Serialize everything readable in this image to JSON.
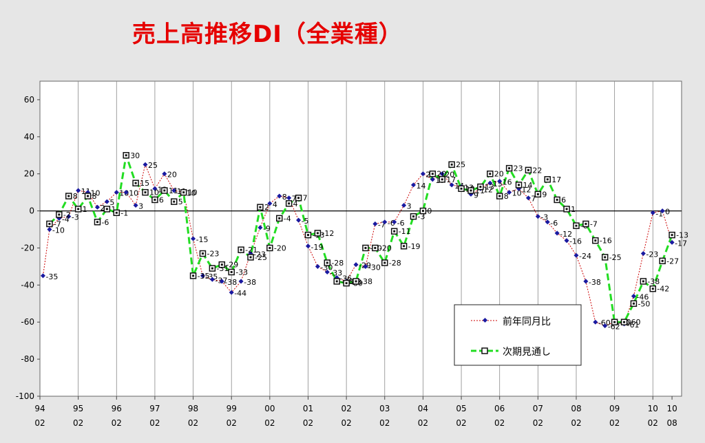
{
  "chart_data": {
    "type": "line",
    "title": "売上高推移DI（全業種）",
    "ylim": [
      -100,
      70
    ],
    "yticks": [
      60,
      40,
      20,
      0,
      -20,
      -40,
      -60,
      -80,
      -100
    ],
    "xticks": [
      {
        "top": "94",
        "bottom": "02"
      },
      {
        "top": "95",
        "bottom": "02"
      },
      {
        "top": "96",
        "bottom": "02"
      },
      {
        "top": "97",
        "bottom": "02"
      },
      {
        "top": "98",
        "bottom": "02"
      },
      {
        "top": "99",
        "bottom": "02"
      },
      {
        "top": "00",
        "bottom": "02"
      },
      {
        "top": "01",
        "bottom": "02"
      },
      {
        "top": "02",
        "bottom": "02"
      },
      {
        "top": "03",
        "bottom": "02"
      },
      {
        "top": "04",
        "bottom": "02"
      },
      {
        "top": "05",
        "bottom": "02"
      },
      {
        "top": "06",
        "bottom": "02"
      },
      {
        "top": "07",
        "bottom": "02"
      },
      {
        "top": "08",
        "bottom": "02"
      },
      {
        "top": "09",
        "bottom": "02"
      },
      {
        "top": "10",
        "bottom": "02"
      },
      {
        "top": "10",
        "bottom": "08"
      }
    ],
    "grid": true,
    "legend_position": "bottom-right",
    "series": [
      {
        "name": "前年同月比",
        "color": "#cc0000",
        "marker_color": "#1a1aa0",
        "x": [
          1994.08,
          1994.25,
          1994.5,
          1994.75,
          1995.0,
          1995.25,
          1995.5,
          1995.75,
          1996.0,
          1996.25,
          1996.5,
          1996.75,
          1997.0,
          1997.25,
          1997.5,
          1997.75,
          1998.0,
          1998.25,
          1998.5,
          1998.75,
          1999.0,
          1999.25,
          1999.5,
          1999.75,
          2000.0,
          2000.25,
          2000.5,
          2000.75,
          2001.0,
          2001.25,
          2001.5,
          2001.75,
          2002.0,
          2002.25,
          2002.5,
          2002.75,
          2003.0,
          2003.25,
          2003.5,
          2003.75,
          2004.0,
          2004.25,
          2004.5,
          2004.75,
          2005.0,
          2005.25,
          2005.5,
          2005.75,
          2006.0,
          2006.25,
          2006.5,
          2006.75,
          2007.0,
          2007.25,
          2007.5,
          2007.75,
          2008.0,
          2008.25,
          2008.5,
          2008.75,
          2009.0,
          2009.25,
          2009.5,
          2009.75,
          2010.0,
          2010.25,
          2010.5
        ],
        "values": [
          -35,
          -10,
          -4,
          -3,
          11,
          10,
          2,
          5,
          10,
          10,
          3,
          25,
          12,
          20,
          11,
          10,
          -15,
          -35,
          -37,
          -38,
          -44,
          -38,
          -23,
          -9,
          4,
          8,
          7,
          -5,
          -19,
          -30,
          -33,
          -36,
          -38,
          -29,
          -30,
          -7,
          -6,
          -6,
          3,
          14,
          20,
          17,
          20,
          14,
          13,
          9,
          12,
          15,
          16,
          10,
          12,
          7,
          -3,
          -6,
          -12,
          -16,
          -24,
          -38,
          -60,
          -62,
          -60,
          -61,
          -46,
          -23,
          -1,
          0,
          -17
        ],
        "labels": [
          "-35",
          "-10",
          "-4",
          "-3",
          "11",
          "10",
          "2",
          "5",
          "10",
          "10",
          "3",
          "25",
          "12",
          "20",
          "11",
          "10",
          "-15",
          "-35",
          "-37",
          "-38",
          "-44",
          "-38",
          "-23",
          "-9",
          "4",
          "8",
          "7",
          "-5",
          "-19",
          "-30",
          "-33",
          "-36",
          "-38",
          "-29",
          "-30",
          "-7",
          "-6",
          "-6",
          "3",
          "14",
          "20",
          "17",
          "20",
          "14",
          "13",
          "9",
          "12",
          "15",
          "16",
          "10",
          "12",
          "7",
          "-3",
          "-6",
          "-12",
          "-16",
          "-24",
          "-38",
          "-60",
          "-62",
          "-60",
          "-61",
          "-46",
          "-23",
          "-1",
          "0",
          "-17"
        ]
      },
      {
        "name": "次期見通し",
        "color": "#22dd22",
        "marker_color": "#111111",
        "x": [
          1994.25,
          1994.5,
          1994.75,
          1995.0,
          1995.25,
          1995.5,
          1995.75,
          1996.0,
          1996.25,
          1996.5,
          1996.75,
          1997.0,
          1997.25,
          1997.5,
          1997.75,
          1998.0,
          1998.25,
          1998.5,
          1998.75,
          1999.0,
          1999.25,
          1999.5,
          1999.75,
          2000.0,
          2000.25,
          2000.5,
          2000.75,
          2001.0,
          2001.25,
          2001.5,
          2001.75,
          2002.0,
          2002.25,
          2002.5,
          2002.75,
          2003.0,
          2003.25,
          2003.5,
          2003.75,
          2004.0,
          2004.25,
          2004.5,
          2004.75,
          2005.0,
          2005.25,
          2005.5,
          2005.75,
          2006.0,
          2006.25,
          2006.5,
          2006.75,
          2007.0,
          2007.25,
          2007.5,
          2007.75,
          2008.0,
          2008.25,
          2008.5,
          2008.75,
          2009.0,
          2009.25,
          2009.5,
          2009.75,
          2010.0,
          2010.25,
          2010.5
        ],
        "values": [
          -7,
          -2,
          8,
          1,
          8,
          -6,
          1,
          -1,
          30,
          15,
          10,
          6,
          11,
          5,
          10,
          -35,
          -23,
          -31,
          -29,
          -33,
          -21,
          -25,
          2,
          -20,
          -4,
          4,
          7,
          -13,
          -12,
          -28,
          -38,
          -39,
          -38,
          -20,
          -20,
          -28,
          -11,
          -19,
          -3,
          0,
          20,
          17,
          25,
          12,
          11,
          13,
          20,
          8,
          23,
          14,
          22,
          9,
          17,
          6,
          1,
          -8,
          -7,
          -16,
          -25,
          -60,
          -60,
          -50,
          -38,
          -42,
          -27,
          -13
        ],
        "labels": [
          "-7",
          "-2",
          "8",
          "1",
          "8",
          "-6",
          "1",
          "-1",
          "30",
          "15",
          "10",
          "6",
          "11",
          "5",
          "10",
          "-35",
          "-23",
          "-31",
          "-29",
          "-33",
          "-21",
          "-25",
          "2",
          "-20",
          "-4",
          "4",
          "7",
          "-13",
          "-12",
          "-28",
          "-38",
          "-39",
          "-38",
          "-20",
          "-20",
          "-28",
          "-11",
          "-19",
          "-3",
          "0",
          "20",
          "17",
          "25",
          "12",
          "11",
          "13",
          "20",
          "8",
          "23",
          "14",
          "22",
          "9",
          "17",
          "6",
          "1",
          "-8",
          "-7",
          "-16",
          "-25",
          "-60",
          "-60",
          "-50",
          "-38",
          "-42",
          "-27",
          "-13"
        ]
      }
    ]
  }
}
